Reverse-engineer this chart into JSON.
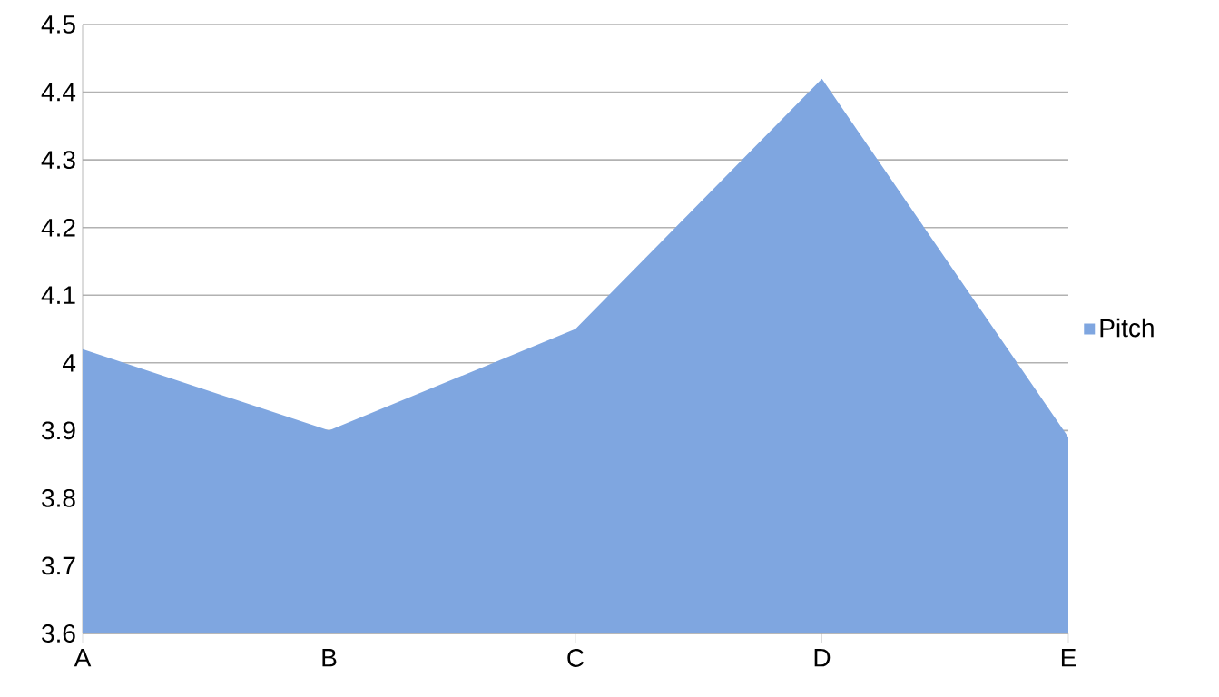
{
  "chart_data": {
    "type": "area",
    "categories": [
      "A",
      "B",
      "C",
      "D",
      "E"
    ],
    "series": [
      {
        "name": "Pitch",
        "color": "#7fa6e0",
        "values": [
          4.02,
          3.9,
          4.05,
          4.42,
          3.89
        ]
      }
    ],
    "ylim": [
      3.6,
      4.5
    ],
    "yticks": [
      3.6,
      3.7,
      3.8,
      3.9,
      4,
      4.1,
      4.2,
      4.3,
      4.4,
      4.5
    ],
    "grid": "y",
    "legend": "right"
  }
}
